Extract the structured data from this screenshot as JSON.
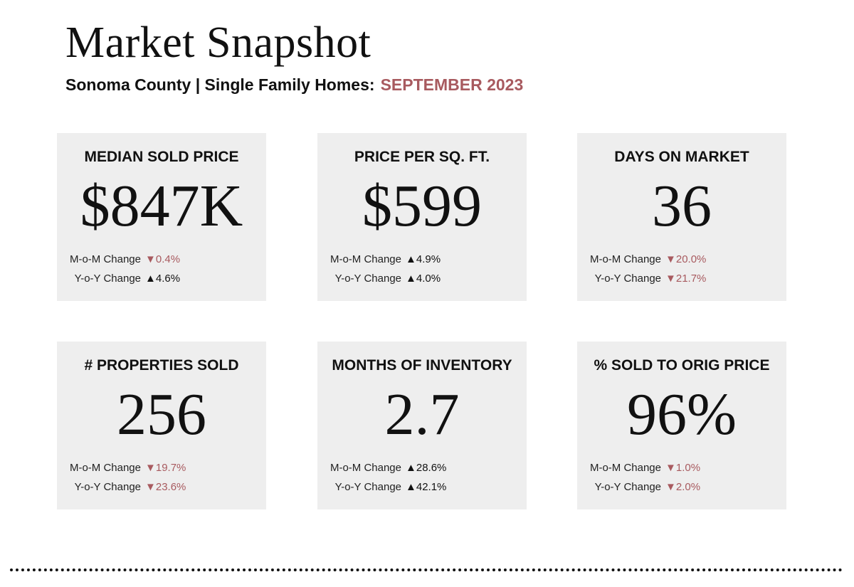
{
  "header": {
    "title": "Market Snapshot",
    "subtitle_prefix": "Sonoma County | Single Family Homes:",
    "period": "SEPTEMBER 2023"
  },
  "colors": {
    "accent": "#a85a5f",
    "card_bg": "#eeeeee",
    "text": "#111111"
  },
  "cards": [
    {
      "label": "MEDIAN SOLD PRICE",
      "value": "$847K",
      "mom_label": "M-o-M Change",
      "mom": "▼0.4%",
      "yoy_label": "Y-o-Y Change",
      "yoy": "▲4.6%"
    },
    {
      "label": "PRICE PER SQ. FT.",
      "value": "$599",
      "mom_label": "M-o-M Change",
      "mom": "▲4.9%",
      "yoy_label": "Y-o-Y Change",
      "yoy": "▲4.0%"
    },
    {
      "label": "DAYS ON MARKET",
      "value": "36",
      "mom_label": "M-o-M Change",
      "mom": "▼20.0%",
      "yoy_label": "Y-o-Y Change",
      "yoy": "▼21.7%"
    },
    {
      "label": "# PROPERTIES SOLD",
      "value": "256",
      "mom_label": "M-o-M Change",
      "mom": "▼19.7%",
      "yoy_label": "Y-o-Y Change",
      "yoy": "▼23.6%"
    },
    {
      "label": "MONTHS OF INVENTORY",
      "value": "2.7",
      "mom_label": "M-o-M Change",
      "mom": "▲28.6%",
      "yoy_label": "Y-o-Y Change",
      "yoy": "▲42.1%"
    },
    {
      "label": "% SOLD TO ORIG PRICE",
      "value": "96%",
      "mom_label": "M-o-M Change",
      "mom": "▼1.0%",
      "yoy_label": "Y-o-Y Change",
      "yoy": "▼2.0%"
    }
  ]
}
